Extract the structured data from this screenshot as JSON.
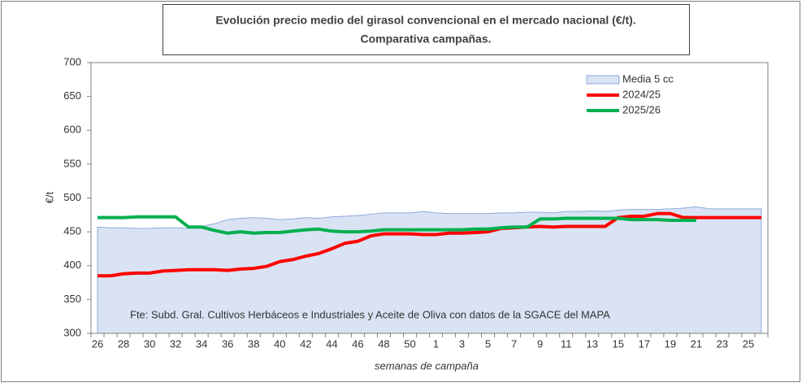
{
  "chart_data": {
    "type": "line",
    "title": "Evolución precio medio del girasol convencional en el mercado nacional (€/t).",
    "subtitle": "Comparativa campañas.",
    "y_label": "€/t",
    "x_label": "semanas de campaña",
    "annotation": "Fte: Subd. Gral. Cultivos Herbáceos e Industriales y Aceite de Oliva con datos de la SGACE del MAPA",
    "categories": [
      26,
      null,
      28,
      null,
      30,
      null,
      32,
      null,
      34,
      null,
      36,
      null,
      38,
      null,
      40,
      null,
      42,
      null,
      44,
      null,
      46,
      null,
      48,
      null,
      50,
      null,
      1,
      null,
      3,
      null,
      5,
      null,
      7,
      null,
      9,
      null,
      11,
      null,
      13,
      null,
      15,
      null,
      17,
      null,
      19,
      null,
      21,
      null,
      23,
      null,
      25,
      null
    ],
    "series": [
      {
        "name": "Media 5 cc",
        "type": "area",
        "color": "#dae3f3",
        "edge": "#8faadc",
        "values": [
          457,
          456,
          456,
          455,
          455,
          456,
          456,
          455,
          458,
          462,
          468,
          470,
          471,
          470,
          468,
          469,
          471,
          470,
          472,
          473,
          474,
          476,
          478,
          478,
          478,
          480,
          478,
          477,
          477,
          477,
          477,
          478,
          478,
          479,
          479,
          478,
          480,
          480,
          481,
          480,
          482,
          483,
          483,
          483,
          484,
          485,
          487,
          484,
          484,
          484,
          484,
          484
        ]
      },
      {
        "name": "2024/25",
        "type": "line",
        "color": "#ff0000",
        "values": [
          385,
          385,
          388,
          389,
          389,
          392,
          393,
          394,
          394,
          394,
          393,
          395,
          396,
          399,
          406,
          409,
          414,
          418,
          425,
          433,
          436,
          444,
          447,
          447,
          447,
          446,
          446,
          448,
          448,
          449,
          450,
          455,
          456,
          457,
          458,
          457,
          458,
          458,
          458,
          458,
          471,
          473,
          473,
          477,
          477,
          471,
          471,
          471,
          471,
          471,
          471,
          471
        ]
      },
      {
        "name": "2025/26",
        "type": "line",
        "color": "#00b050",
        "values": [
          471,
          471,
          471,
          472,
          472,
          472,
          472,
          457,
          457,
          452,
          448,
          450,
          448,
          449,
          449,
          451,
          453,
          454,
          451,
          450,
          450,
          451,
          453,
          453,
          453,
          453,
          453,
          453,
          453,
          454,
          454,
          456,
          457,
          457,
          469,
          469,
          470,
          470,
          470,
          470,
          470,
          468,
          468,
          468,
          467,
          467,
          467,
          null,
          null,
          null,
          null,
          null
        ]
      }
    ],
    "ylim": [
      300,
      700
    ],
    "yticks": [
      300,
      350,
      400,
      450,
      500,
      550,
      600,
      650,
      700
    ],
    "grid": false
  }
}
